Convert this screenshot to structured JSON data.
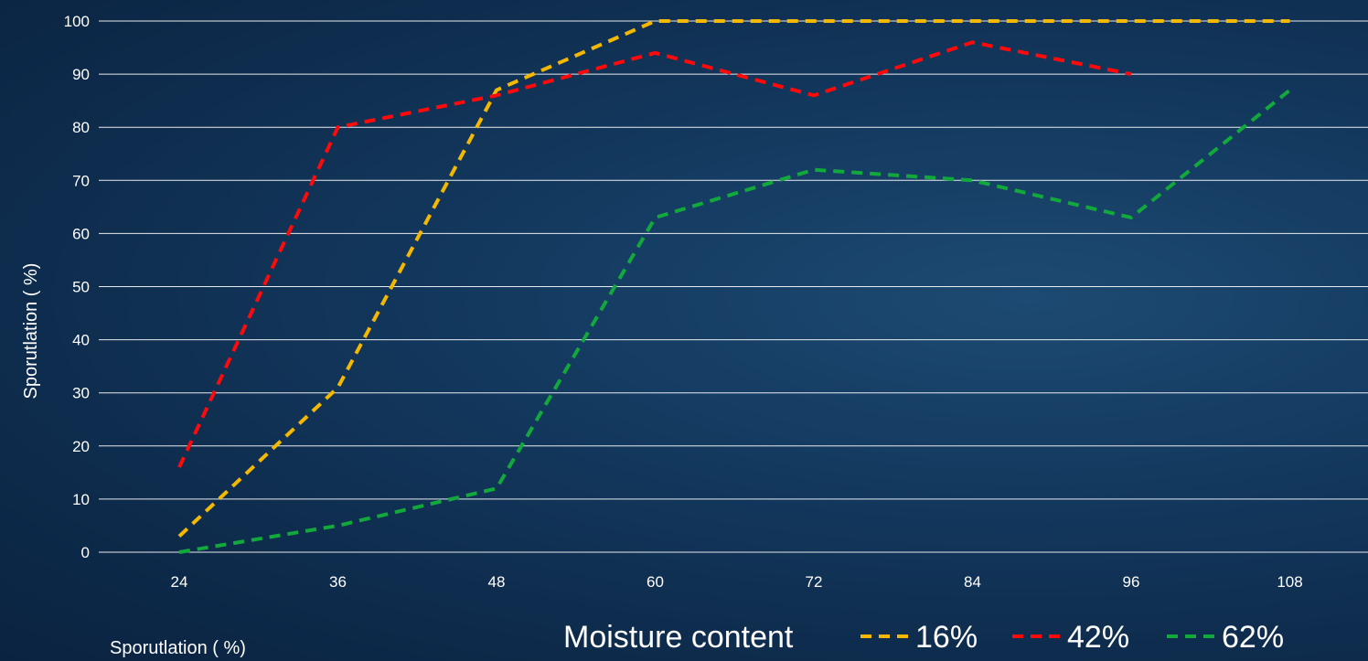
{
  "chart_data": {
    "type": "line",
    "title": "",
    "ylabel": "Sporutlation ( %)",
    "xlabel": "Sporutlation ( %)",
    "categories": [
      "24",
      "36",
      "48",
      "60",
      "72",
      "84",
      "96",
      "108"
    ],
    "ylim": [
      0,
      100
    ],
    "yticks": [
      "0",
      "10",
      "20",
      "30",
      "40",
      "50",
      "60",
      "70",
      "80",
      "90",
      "100"
    ],
    "grid": true,
    "legend": {
      "title": "Moisture content",
      "placement": "bottom-right"
    },
    "series": [
      {
        "name": "16%",
        "color": "#f5b800",
        "values": [
          3,
          31,
          87,
          100,
          100,
          100,
          100,
          100
        ]
      },
      {
        "name": "42%",
        "color": "#ff0a0a",
        "values": [
          16,
          80,
          86,
          94,
          86,
          96,
          90,
          null
        ]
      },
      {
        "name": "62%",
        "color": "#12a83c",
        "values": [
          0,
          5,
          12,
          63,
          72,
          70,
          63,
          87
        ]
      }
    ]
  }
}
